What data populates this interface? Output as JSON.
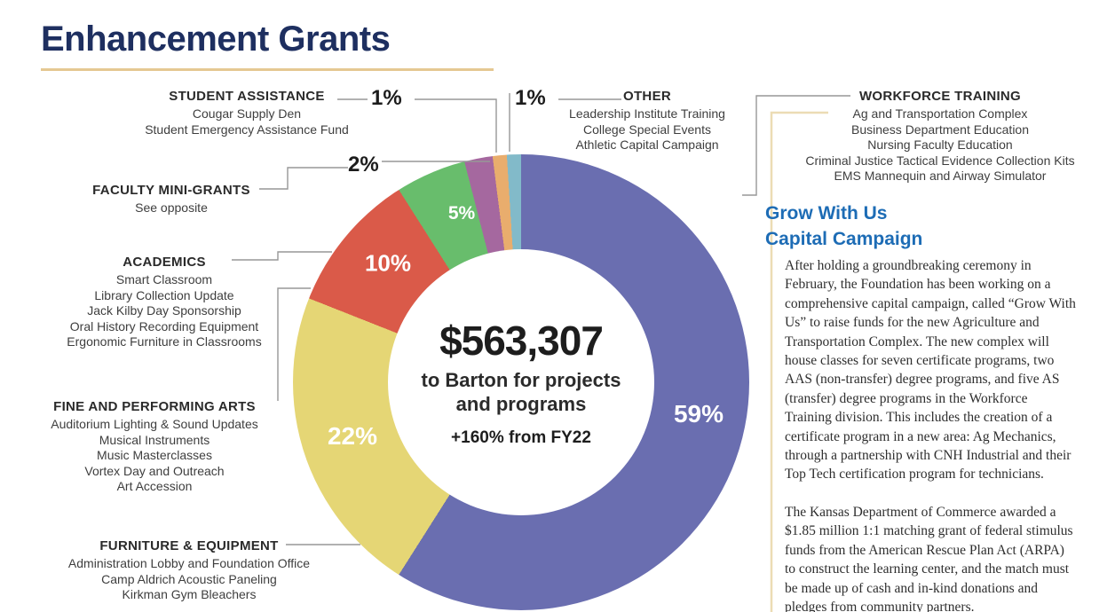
{
  "title": "Enhancement Grants",
  "colors": {
    "title_navy": "#1e2f60",
    "title_rule_tan": "#e5c892",
    "panel_border_tan": "#ecdcb4",
    "grow_heading_blue": "#1d6cb5",
    "connector_gray": "#979797",
    "pct_label_white": "#ffffff"
  },
  "chart_data": {
    "type": "pie",
    "subtype": "donut",
    "title": "Enhancement Grants",
    "legend_position": "callouts-around-donut",
    "center": {
      "value": "$563,307",
      "label": "to Barton for projects and programs",
      "note": "+160% from FY22"
    },
    "segments": [
      {
        "category": "WORKFORCE TRAINING",
        "pct": 59,
        "pct_label": "59%",
        "color": "#6a6eb0",
        "items": [
          "Ag and Transportation Complex",
          "Business Department Education",
          "Nursing Faculty Education",
          "Criminal Justice Tactical Evidence Collection Kits",
          "EMS Mannequin and Airway Simulator"
        ]
      },
      {
        "category": "FURNITURE & EQUIPMENT",
        "pct": 22,
        "pct_label": "22%",
        "color": "#e5d675",
        "items": [
          "Administration Lobby and Foundation Office",
          "Camp Aldrich Acoustic Paneling",
          "Kirkman Gym Bleachers"
        ]
      },
      {
        "category": "ACADEMICS",
        "pct": 10,
        "pct_label": "10%",
        "color": "#da5a49",
        "items": [
          "Smart Classroom",
          "Library Collection Update",
          "Jack Kilby Day Sponsorship",
          "Oral History Recording Equipment",
          "Ergonomic Furniture in Classrooms"
        ]
      },
      {
        "category": "FINE AND PERFORMING ARTS",
        "pct": 5,
        "pct_label": "5%",
        "color": "#68bd6c",
        "items": [
          "Auditorium Lighting & Sound Updates",
          "Musical Instruments",
          "Music Masterclasses",
          "Vortex Day and Outreach",
          "Art Accession"
        ]
      },
      {
        "category": "FACULTY MINI-GRANTS",
        "pct": 2,
        "pct_label": "2%",
        "color": "#a5689f",
        "items": [
          "See opposite"
        ]
      },
      {
        "category": "STUDENT ASSISTANCE",
        "pct": 1,
        "pct_label": "1%",
        "color": "#e9ad6d",
        "items": [
          "Cougar Supply Den",
          "Student Emergency Assistance Fund"
        ]
      },
      {
        "category": "OTHER",
        "pct": 1,
        "pct_label": "1%",
        "color": "#82bac9",
        "items": [
          "Leadership Institute Training",
          "College Special Events",
          "Athletic Capital Campaign"
        ]
      }
    ],
    "slice_order_clockwise_from_top": [
      "WORKFORCE TRAINING",
      "FURNITURE & EQUIPMENT",
      "ACADEMICS",
      "FINE AND PERFORMING ARTS",
      "FACULTY MINI-GRANTS",
      "STUDENT ASSISTANCE",
      "OTHER"
    ]
  },
  "right_panel": {
    "heading_line1": "Grow With Us",
    "heading_line2": "Capital Campaign",
    "paragraphs": [
      "After holding a groundbreaking ceremony in February, the Foundation has been working on a comprehensive capital campaign, called “Grow With Us” to raise funds for the new Agriculture and Transportation Complex. The new complex will house classes for seven certificate programs, two AAS (non-transfer) degree programs, and five AS (transfer) degree programs in the Workforce Training division. This includes the creation of a certificate program in a new area: Ag Mechanics, through a partnership with CNH Industrial and their Top Tech certification program for technicians.",
      "The Kansas Department of Commerce awarded a $1.85 million 1:1 matching grant of federal stimulus funds from the American Rescue Plan Act (ARPA) to construct the learning center, and the match must be made up of cash and in-kind donations and pledges from community partners."
    ]
  }
}
